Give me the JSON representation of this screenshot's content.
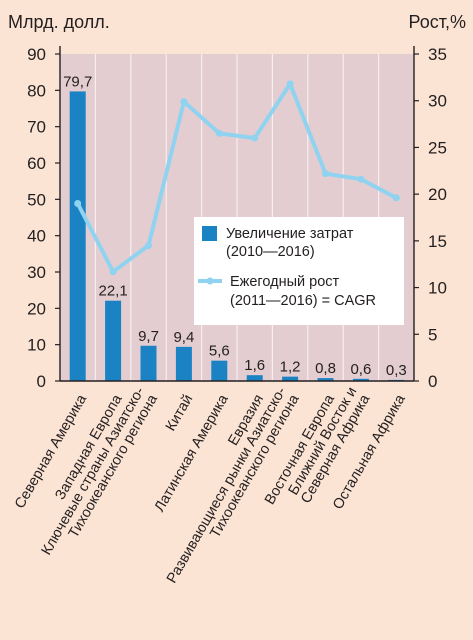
{
  "chart_data": {
    "type": "bar+line",
    "left_axis_title": "Млрд. долл.",
    "right_axis_title": "Рост,%",
    "left_ylim": [
      0,
      90
    ],
    "left_ticks": [
      0,
      10,
      20,
      30,
      40,
      50,
      60,
      70,
      80,
      90
    ],
    "right_ylim": [
      0,
      35
    ],
    "right_ticks": [
      0,
      5,
      10,
      15,
      20,
      25,
      30,
      35
    ],
    "categories": [
      [
        "Северная Америка"
      ],
      [
        "Западная Европа"
      ],
      [
        "Ключевые страны Азиатско-",
        "Тихоокеанского региона"
      ],
      [
        "Китай"
      ],
      [
        "Латинская Америка"
      ],
      [
        "Евразия"
      ],
      [
        "Развивающиеся рынки Азиатско-",
        "Тихоокеанского региона"
      ],
      [
        "Восточная Европа"
      ],
      [
        "Ближний Восток и",
        "Северная Африка"
      ],
      [
        "Остальная Африка"
      ]
    ],
    "bar_series": {
      "name": [
        "Увеличение затрат",
        "(2010—2016)"
      ],
      "values": [
        79.7,
        22.1,
        9.7,
        9.4,
        5.6,
        1.6,
        1.2,
        0.8,
        0.6,
        0.3
      ],
      "labels": [
        "79,7",
        "22,1",
        "9,7",
        "9,4",
        "5,6",
        "1,6",
        "1,2",
        "0,8",
        "0,6",
        "0,3"
      ],
      "color": "#1b82c4"
    },
    "line_series": {
      "name": [
        "Ежегодный рост",
        "(2011—2016) = CAGR"
      ],
      "values": [
        19.0,
        11.7,
        14.5,
        29.9,
        26.5,
        26.0,
        31.8,
        22.2,
        21.6,
        19.6
      ],
      "color": "#8fd3f0"
    },
    "colors": {
      "background": "#fce4d4",
      "plot_background": "#e3cdd0",
      "grid": "#f7eef0",
      "text": "#231f20"
    },
    "grid": true,
    "legend_position": "middle-right"
  }
}
